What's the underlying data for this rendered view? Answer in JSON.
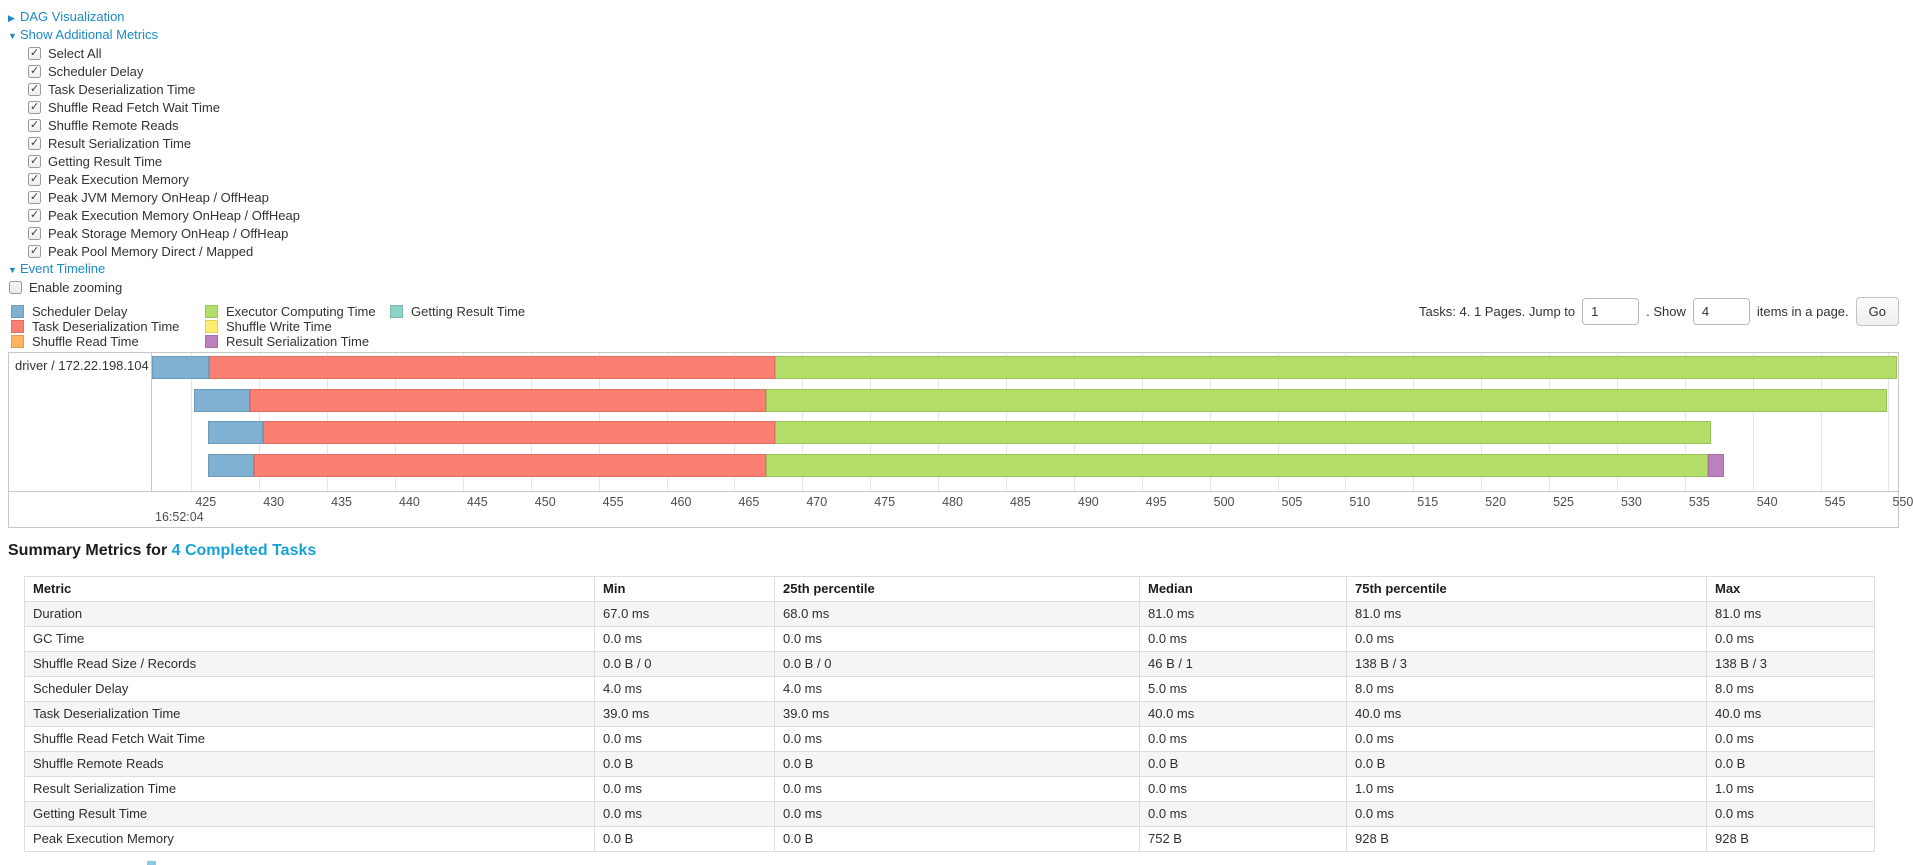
{
  "controls": {
    "dag": {
      "label": "DAG Visualization",
      "state": "collapsed"
    },
    "metrics": {
      "label": "Show Additional Metrics",
      "state": "expanded",
      "items": [
        {
          "label": "Select All",
          "checked": true
        },
        {
          "label": "Scheduler Delay",
          "checked": true
        },
        {
          "label": "Task Deserialization Time",
          "checked": true
        },
        {
          "label": "Shuffle Read Fetch Wait Time",
          "checked": true
        },
        {
          "label": "Shuffle Remote Reads",
          "checked": true
        },
        {
          "label": "Result Serialization Time",
          "checked": true
        },
        {
          "label": "Getting Result Time",
          "checked": true
        },
        {
          "label": "Peak Execution Memory",
          "checked": true
        },
        {
          "label": "Peak JVM Memory OnHeap / OffHeap",
          "checked": true
        },
        {
          "label": "Peak Execution Memory OnHeap / OffHeap",
          "checked": true
        },
        {
          "label": "Peak Storage Memory OnHeap / OffHeap",
          "checked": true
        },
        {
          "label": "Peak Pool Memory Direct / Mapped",
          "checked": true
        }
      ]
    },
    "event_timeline": {
      "label": "Event Timeline",
      "state": "expanded"
    },
    "enable_zooming": {
      "label": "Enable zooming",
      "checked": false
    }
  },
  "pagination": {
    "prefix": "Tasks: 4. 1 Pages. Jump to",
    "jump_value": "1",
    "middle": ". Show",
    "show_value": "4",
    "suffix": "items in a page.",
    "go_label": "Go"
  },
  "chart_data": {
    "type": "bar",
    "subtype": "horizontal-stacked-task-timeline",
    "title": "Event Timeline",
    "group_label": "driver / 172.22.198.104",
    "x_axis": {
      "major_label": "16:52:04",
      "unit": "ms within second 16:52:04",
      "min": 422.1,
      "max": 550.7,
      "tick_start": 425,
      "tick_end": 550,
      "tick_step": 5
    },
    "legend": [
      {
        "key": "scheduler-delay",
        "label": "Scheduler Delay",
        "color": "#80B1D3"
      },
      {
        "key": "task-deserialization-time",
        "label": "Task Deserialization Time",
        "color": "#FB8072"
      },
      {
        "key": "shuffle-read-time",
        "label": "Shuffle Read Time",
        "color": "#FDB462"
      },
      {
        "key": "executor-computing-time",
        "label": "Executor Computing Time",
        "color": "#B3DE69"
      },
      {
        "key": "shuffle-write-time",
        "label": "Shuffle Write Time",
        "color": "#FFED6F"
      },
      {
        "key": "result-serialization-time",
        "label": "Result Serialization Time",
        "color": "#BC80BD"
      },
      {
        "key": "getting-result-time",
        "label": "Getting Result Time",
        "color": "#8DD3C7"
      }
    ],
    "legend_columns": [
      [
        0,
        1,
        2
      ],
      [
        3,
        4,
        5
      ],
      [
        6
      ]
    ],
    "tasks": [
      {
        "segments": [
          {
            "legend_index": 0,
            "start": 422.1,
            "end": 426.3
          },
          {
            "legend_index": 1,
            "start": 426.3,
            "end": 468.0
          },
          {
            "legend_index": 3,
            "start": 468.0,
            "end": 550.6
          }
        ]
      },
      {
        "segments": [
          {
            "legend_index": 0,
            "start": 425.2,
            "end": 429.3
          },
          {
            "legend_index": 1,
            "start": 429.3,
            "end": 467.3
          },
          {
            "legend_index": 3,
            "start": 467.3,
            "end": 549.9
          }
        ]
      },
      {
        "segments": [
          {
            "legend_index": 0,
            "start": 426.2,
            "end": 430.3
          },
          {
            "legend_index": 1,
            "start": 430.3,
            "end": 468.0
          },
          {
            "legend_index": 3,
            "start": 468.0,
            "end": 536.9
          }
        ]
      },
      {
        "segments": [
          {
            "legend_index": 0,
            "start": 426.2,
            "end": 429.6
          },
          {
            "legend_index": 1,
            "start": 429.6,
            "end": 467.3
          },
          {
            "legend_index": 3,
            "start": 467.3,
            "end": 536.7
          },
          {
            "legend_index": 5,
            "start": 536.7,
            "end": 537.9
          }
        ]
      }
    ]
  },
  "summary": {
    "title_prefix": "Summary Metrics for",
    "title_link": "4 Completed Tasks",
    "table": {
      "headers": [
        "Metric",
        "Min",
        "25th percentile",
        "Median",
        "75th percentile",
        "Max"
      ],
      "rows": [
        {
          "metric": "Duration",
          "values": [
            "67.0 ms",
            "68.0 ms",
            "81.0 ms",
            "81.0 ms",
            "81.0 ms"
          ]
        },
        {
          "metric": "GC Time",
          "values": [
            "0.0 ms",
            "0.0 ms",
            "0.0 ms",
            "0.0 ms",
            "0.0 ms"
          ]
        },
        {
          "metric": "Shuffle Read Size / Records",
          "values": [
            "0.0 B / 0",
            "0.0 B / 0",
            "46 B / 1",
            "138 B / 3",
            "138 B / 3"
          ]
        },
        {
          "metric": "Scheduler Delay",
          "values": [
            "4.0 ms",
            "4.0 ms",
            "5.0 ms",
            "8.0 ms",
            "8.0 ms"
          ]
        },
        {
          "metric": "Task Deserialization Time",
          "values": [
            "39.0 ms",
            "39.0 ms",
            "40.0 ms",
            "40.0 ms",
            "40.0 ms"
          ]
        },
        {
          "metric": "Shuffle Read Fetch Wait Time",
          "values": [
            "0.0 ms",
            "0.0 ms",
            "0.0 ms",
            "0.0 ms",
            "0.0 ms"
          ]
        },
        {
          "metric": "Shuffle Remote Reads",
          "values": [
            "0.0 B",
            "0.0 B",
            "0.0 B",
            "0.0 B",
            "0.0 B"
          ]
        },
        {
          "metric": "Result Serialization Time",
          "values": [
            "0.0 ms",
            "0.0 ms",
            "0.0 ms",
            "1.0 ms",
            "1.0 ms"
          ]
        },
        {
          "metric": "Getting Result Time",
          "values": [
            "0.0 ms",
            "0.0 ms",
            "0.0 ms",
            "0.0 ms",
            "0.0 ms"
          ]
        },
        {
          "metric": "Peak Execution Memory",
          "values": [
            "0.0 B",
            "0.0 B",
            "752 B",
            "928 B",
            "928 B"
          ]
        }
      ]
    }
  },
  "colors": {
    "link": "#1b8ac6",
    "heading_link": "#17a2d8",
    "table_stripe": "#f5f5f5",
    "chart_border": "#c7c7c7",
    "gridline": "#e6e6e6",
    "clipped_speck": "#8fc7e8"
  }
}
